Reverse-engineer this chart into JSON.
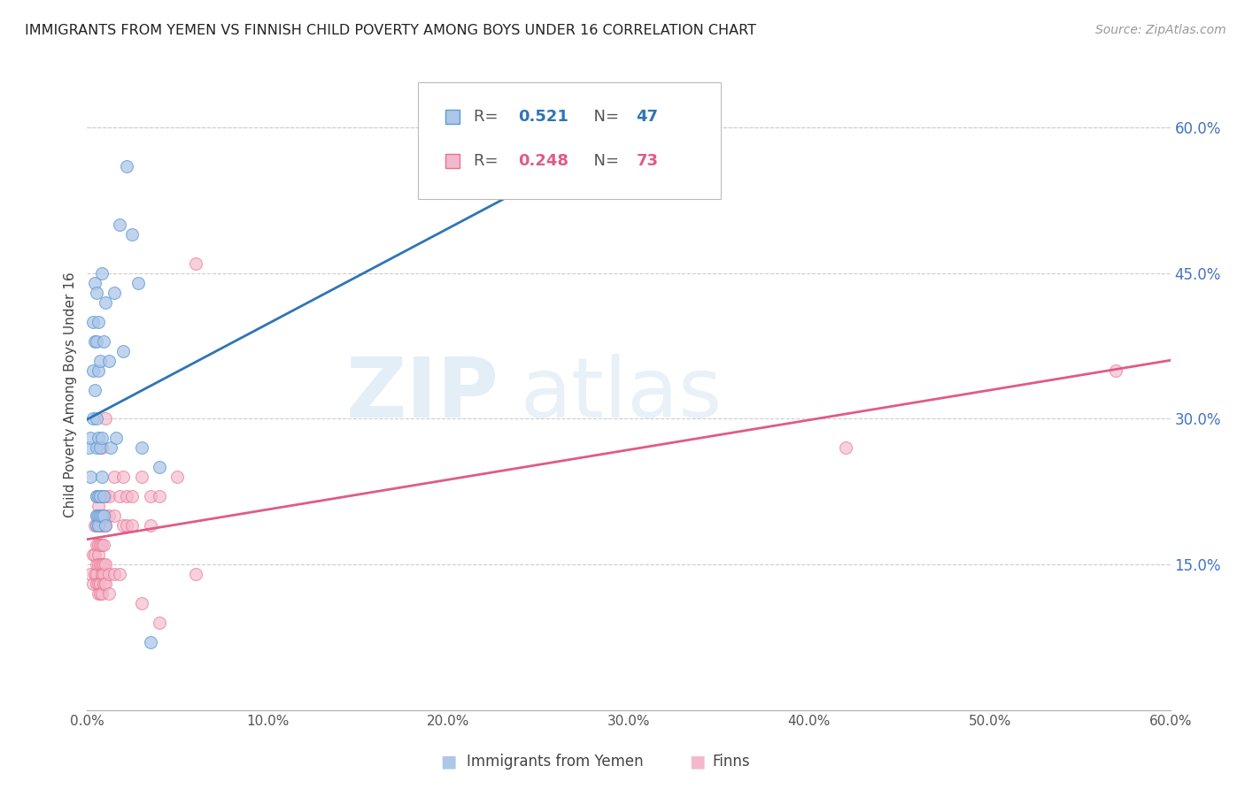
{
  "title": "IMMIGRANTS FROM YEMEN VS FINNISH CHILD POVERTY AMONG BOYS UNDER 16 CORRELATION CHART",
  "source": "Source: ZipAtlas.com",
  "ylabel": "Child Poverty Among Boys Under 16",
  "xlim": [
    0,
    0.6
  ],
  "ylim": [
    0,
    0.65
  ],
  "xticks": [
    0.0,
    0.1,
    0.2,
    0.3,
    0.4,
    0.5,
    0.6
  ],
  "yticks_right": [
    0.15,
    0.3,
    0.45,
    0.6
  ],
  "color_blue_fill": "#aec6e8",
  "color_blue_edge": "#5b9bd5",
  "color_blue_line": "#2e75b6",
  "color_pink_fill": "#f4b8cc",
  "color_pink_edge": "#e8728c",
  "color_pink_line": "#e05a8a",
  "color_axis_right": "#4472c4",
  "color_title": "#222222",
  "blue_scatter": [
    [
      0.001,
      0.27
    ],
    [
      0.002,
      0.28
    ],
    [
      0.002,
      0.24
    ],
    [
      0.003,
      0.4
    ],
    [
      0.003,
      0.35
    ],
    [
      0.003,
      0.3
    ],
    [
      0.004,
      0.44
    ],
    [
      0.004,
      0.38
    ],
    [
      0.004,
      0.33
    ],
    [
      0.005,
      0.43
    ],
    [
      0.005,
      0.38
    ],
    [
      0.005,
      0.3
    ],
    [
      0.005,
      0.27
    ],
    [
      0.005,
      0.22
    ],
    [
      0.005,
      0.2
    ],
    [
      0.005,
      0.19
    ],
    [
      0.006,
      0.4
    ],
    [
      0.006,
      0.35
    ],
    [
      0.006,
      0.28
    ],
    [
      0.006,
      0.22
    ],
    [
      0.006,
      0.2
    ],
    [
      0.006,
      0.19
    ],
    [
      0.007,
      0.36
    ],
    [
      0.007,
      0.27
    ],
    [
      0.007,
      0.22
    ],
    [
      0.007,
      0.2
    ],
    [
      0.008,
      0.45
    ],
    [
      0.008,
      0.28
    ],
    [
      0.008,
      0.24
    ],
    [
      0.008,
      0.2
    ],
    [
      0.009,
      0.38
    ],
    [
      0.009,
      0.22
    ],
    [
      0.009,
      0.2
    ],
    [
      0.01,
      0.42
    ],
    [
      0.01,
      0.19
    ],
    [
      0.012,
      0.36
    ],
    [
      0.013,
      0.27
    ],
    [
      0.015,
      0.43
    ],
    [
      0.016,
      0.28
    ],
    [
      0.018,
      0.5
    ],
    [
      0.02,
      0.37
    ],
    [
      0.022,
      0.56
    ],
    [
      0.025,
      0.49
    ],
    [
      0.028,
      0.44
    ],
    [
      0.03,
      0.27
    ],
    [
      0.035,
      0.07
    ],
    [
      0.04,
      0.25
    ]
  ],
  "pink_scatter": [
    [
      0.002,
      0.14
    ],
    [
      0.003,
      0.16
    ],
    [
      0.003,
      0.13
    ],
    [
      0.004,
      0.19
    ],
    [
      0.004,
      0.16
    ],
    [
      0.004,
      0.14
    ],
    [
      0.005,
      0.22
    ],
    [
      0.005,
      0.2
    ],
    [
      0.005,
      0.19
    ],
    [
      0.005,
      0.17
    ],
    [
      0.005,
      0.15
    ],
    [
      0.005,
      0.14
    ],
    [
      0.005,
      0.13
    ],
    [
      0.006,
      0.21
    ],
    [
      0.006,
      0.19
    ],
    [
      0.006,
      0.17
    ],
    [
      0.006,
      0.16
    ],
    [
      0.006,
      0.15
    ],
    [
      0.006,
      0.13
    ],
    [
      0.006,
      0.12
    ],
    [
      0.007,
      0.22
    ],
    [
      0.007,
      0.2
    ],
    [
      0.007,
      0.19
    ],
    [
      0.007,
      0.17
    ],
    [
      0.007,
      0.15
    ],
    [
      0.007,
      0.13
    ],
    [
      0.007,
      0.12
    ],
    [
      0.008,
      0.27
    ],
    [
      0.008,
      0.22
    ],
    [
      0.008,
      0.2
    ],
    [
      0.008,
      0.19
    ],
    [
      0.008,
      0.17
    ],
    [
      0.008,
      0.15
    ],
    [
      0.008,
      0.14
    ],
    [
      0.008,
      0.12
    ],
    [
      0.009,
      0.19
    ],
    [
      0.009,
      0.17
    ],
    [
      0.009,
      0.15
    ],
    [
      0.009,
      0.14
    ],
    [
      0.009,
      0.13
    ],
    [
      0.01,
      0.3
    ],
    [
      0.01,
      0.22
    ],
    [
      0.01,
      0.2
    ],
    [
      0.01,
      0.19
    ],
    [
      0.01,
      0.15
    ],
    [
      0.01,
      0.13
    ],
    [
      0.012,
      0.22
    ],
    [
      0.012,
      0.2
    ],
    [
      0.012,
      0.14
    ],
    [
      0.012,
      0.12
    ],
    [
      0.015,
      0.24
    ],
    [
      0.015,
      0.2
    ],
    [
      0.015,
      0.14
    ],
    [
      0.018,
      0.22
    ],
    [
      0.018,
      0.14
    ],
    [
      0.02,
      0.24
    ],
    [
      0.02,
      0.19
    ],
    [
      0.022,
      0.22
    ],
    [
      0.022,
      0.19
    ],
    [
      0.025,
      0.22
    ],
    [
      0.025,
      0.19
    ],
    [
      0.03,
      0.24
    ],
    [
      0.03,
      0.11
    ],
    [
      0.035,
      0.22
    ],
    [
      0.035,
      0.19
    ],
    [
      0.04,
      0.22
    ],
    [
      0.04,
      0.09
    ],
    [
      0.05,
      0.24
    ],
    [
      0.06,
      0.46
    ],
    [
      0.06,
      0.14
    ],
    [
      0.42,
      0.27
    ],
    [
      0.57,
      0.35
    ]
  ],
  "watermark_zip": "ZIP",
  "watermark_atlas": "atlas",
  "background_color": "#ffffff",
  "grid_color": "#cccccc"
}
